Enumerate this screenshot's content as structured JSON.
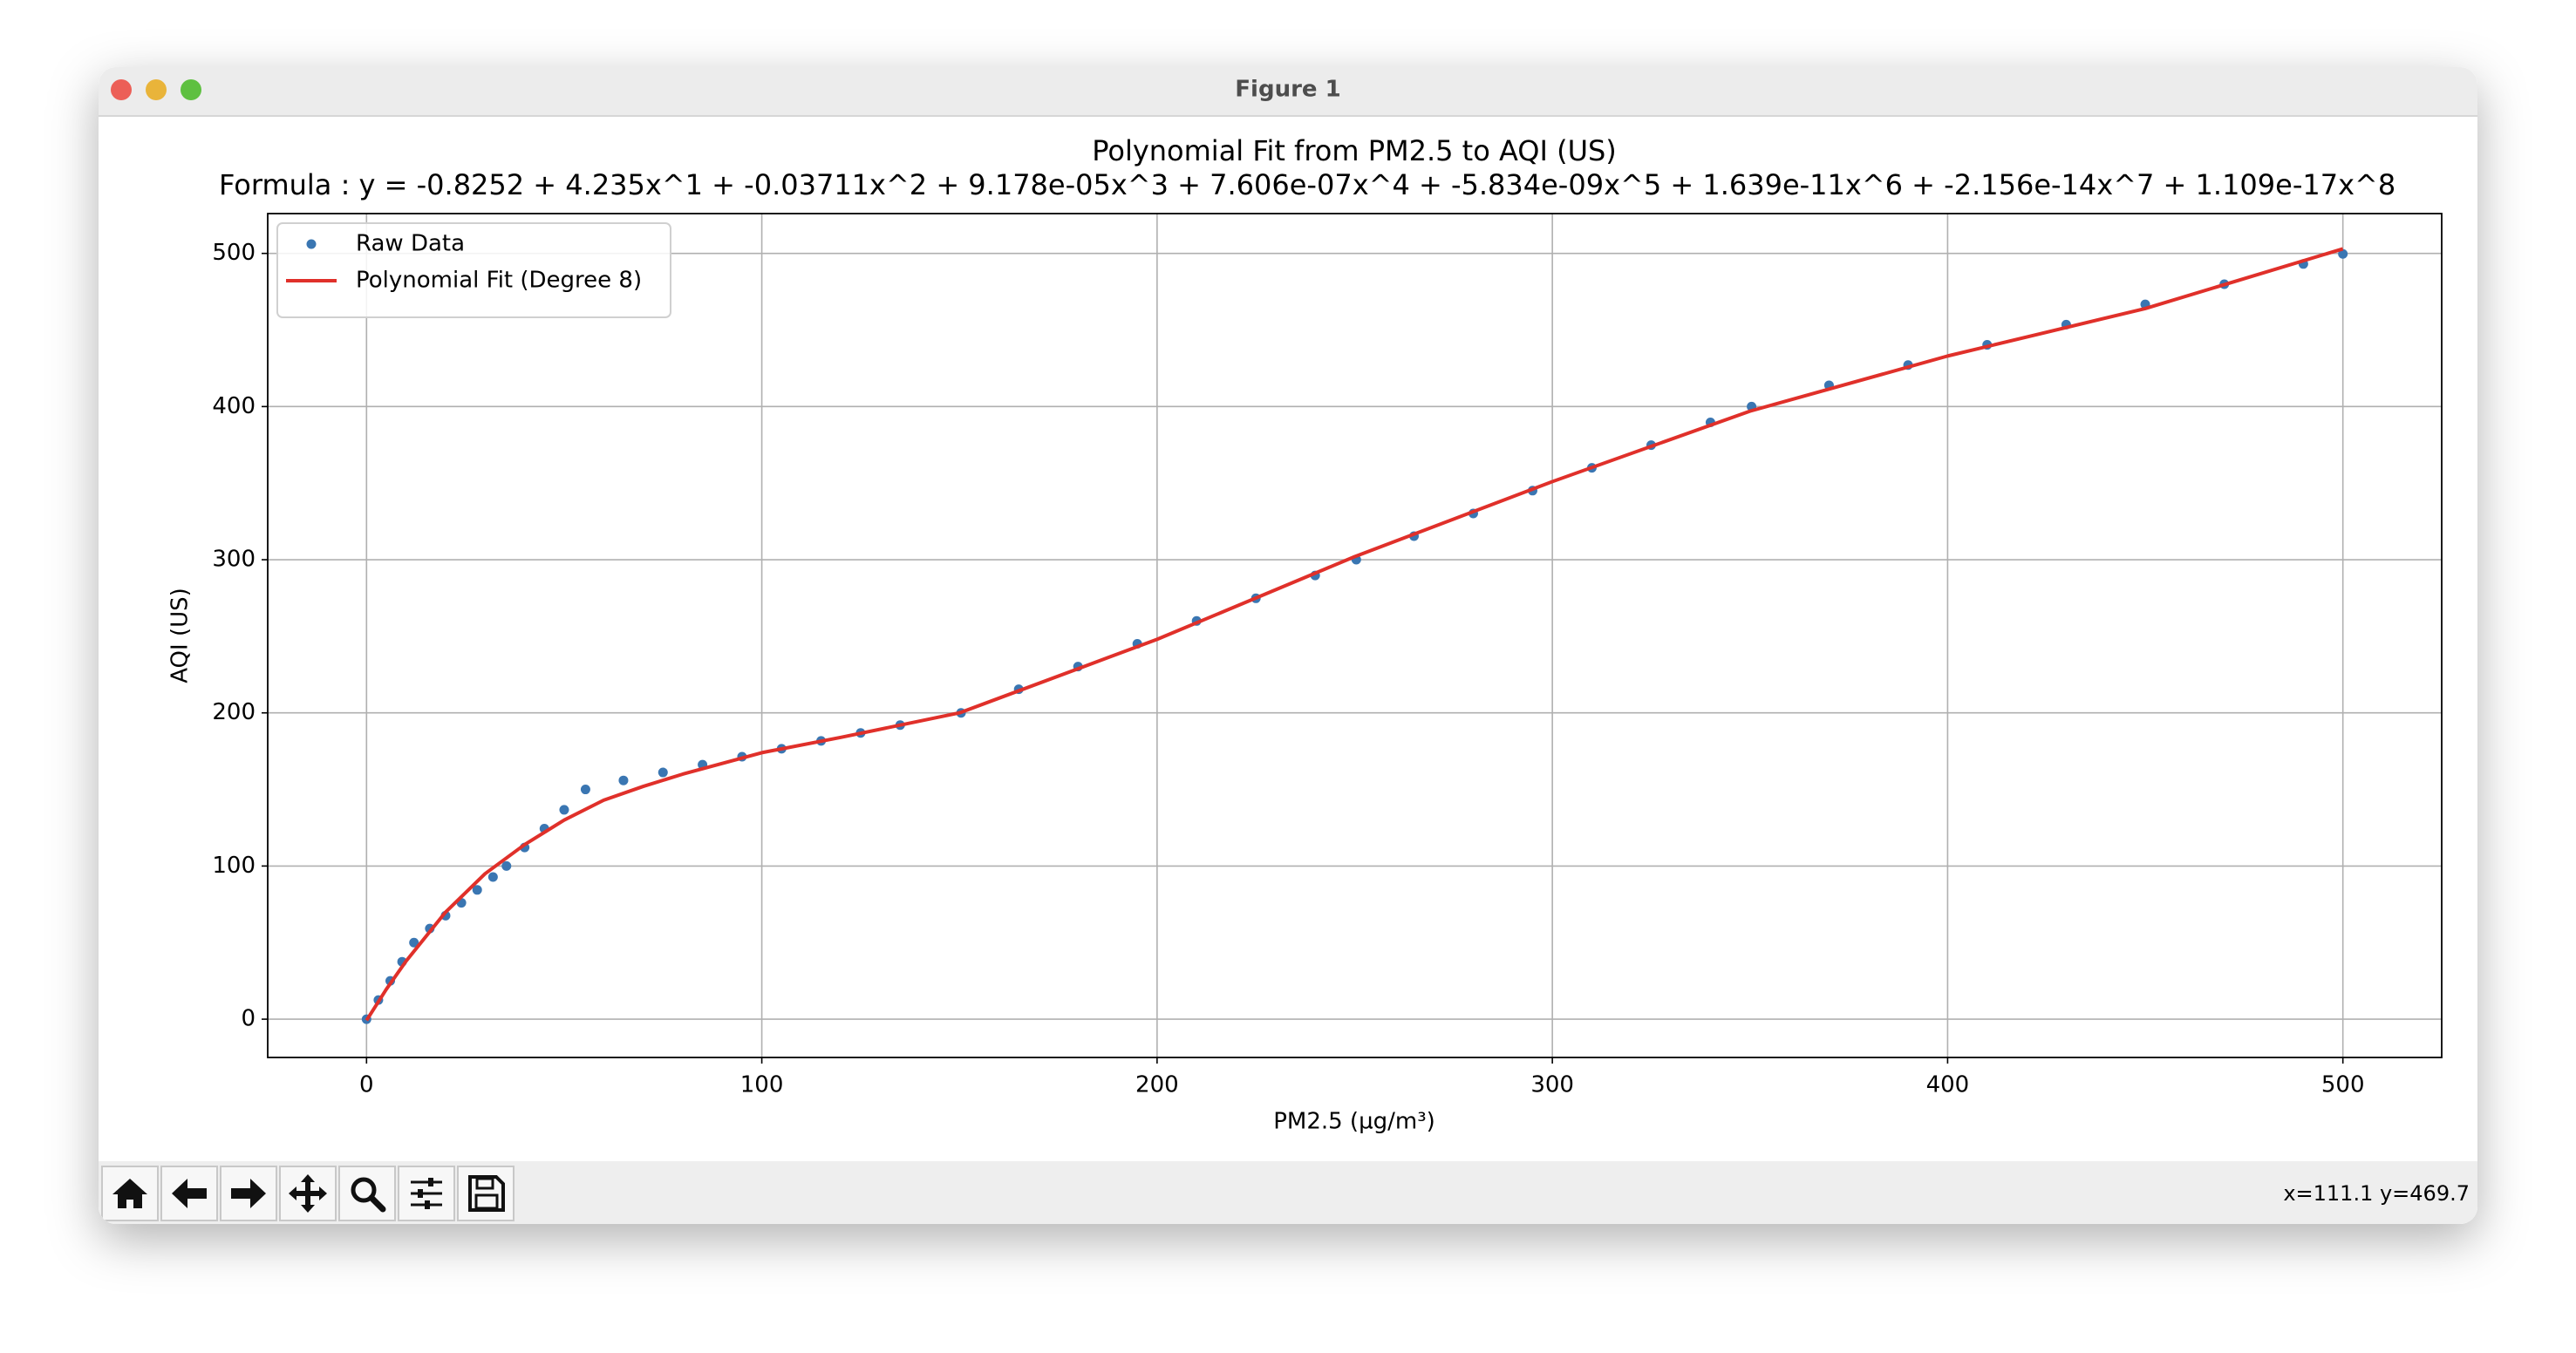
{
  "window": {
    "title": "Figure 1"
  },
  "status": "x=111.1 y=469.7",
  "chart_data": {
    "type": "line",
    "title": "Polynomial Fit from PM2.5 to AQI (US)",
    "subtitle": "Formula : y = -0.8252 + 4.235x^1 + -0.03711x^2 + 9.178e-05x^3 + 7.606e-07x^4 + -5.834e-09x^5 + 1.639e-11x^6 + -2.156e-14x^7 + 1.109e-17x^8",
    "xlabel": "PM2.5 (µg/m³)",
    "ylabel": "AQI (US)",
    "xlim": [
      -25,
      525
    ],
    "ylim": [
      -25,
      526
    ],
    "xticks": [
      0,
      100,
      200,
      300,
      400,
      500
    ],
    "yticks": [
      0,
      100,
      200,
      300,
      400,
      500
    ],
    "grid": true,
    "legend": "upper left",
    "series": [
      {
        "name": "Raw Data",
        "color": "#3a76b2",
        "style": "markers",
        "x": [
          0,
          3,
          6,
          9,
          12,
          16,
          20,
          24,
          28,
          32,
          35.4,
          40,
          45,
          50,
          55.4,
          65,
          75,
          85,
          95,
          105,
          115,
          125,
          135,
          150.4,
          165,
          180,
          195,
          210,
          225,
          240,
          250.4,
          265,
          280,
          295,
          310,
          325,
          340,
          350.4,
          370,
          390,
          410,
          430,
          450,
          470,
          490,
          500
        ],
        "values": [
          0,
          12.5,
          25,
          37.5,
          50,
          59.2,
          67.6,
          76.0,
          84.4,
          92.8,
          100,
          112.1,
          124.4,
          136.7,
          150,
          155.9,
          161.1,
          166.2,
          171.4,
          176.6,
          181.7,
          186.9,
          192.0,
          200,
          215.4,
          230.2,
          245.1,
          260.0,
          274.8,
          289.7,
          300,
          315.4,
          330.2,
          345.1,
          360.0,
          374.8,
          389.7,
          400,
          413.9,
          427.1,
          440.3,
          453.5,
          466.7,
          479.9,
          493.1,
          499.7
        ]
      },
      {
        "name": "Polynomial Fit (Degree 8)",
        "color": "#e0302a",
        "style": "line",
        "x": [
          0,
          5,
          10,
          20,
          30,
          40,
          50,
          60,
          70,
          80,
          100,
          120,
          150,
          200,
          250,
          300,
          350,
          400,
          450,
          500
        ],
        "values": [
          -0.8,
          19.5,
          37.9,
          69.9,
          95,
          114,
          130,
          143,
          152,
          160,
          174,
          184,
          200,
          248,
          302,
          351,
          397,
          433,
          464,
          503
        ]
      }
    ]
  }
}
